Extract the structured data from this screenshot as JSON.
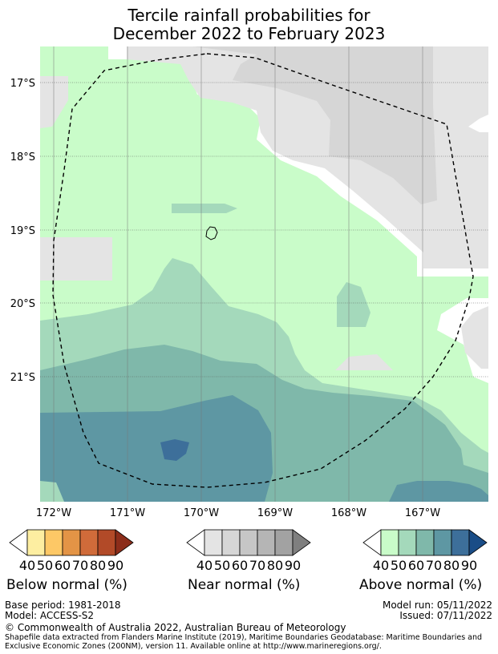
{
  "title": {
    "line1": "Tercile rainfall probabilities for",
    "line2": "December 2022 to February 2023"
  },
  "map": {
    "lat_labels": [
      "17°S",
      "18°S",
      "19°S",
      "20°S",
      "21°S"
    ],
    "lon_labels": [
      "172°W",
      "171°W",
      "170°W",
      "169°W",
      "168°W",
      "167°W"
    ]
  },
  "legend": {
    "below": {
      "label": "Below normal (%)",
      "ticks": [
        "40",
        "50",
        "60",
        "70",
        "80",
        "90"
      ],
      "colors": [
        "#ffffff",
        "#fdeea1",
        "#fdc866",
        "#e39446",
        "#d06b3a",
        "#b24a28",
        "#8c2d1a"
      ]
    },
    "near": {
      "label": "Near normal (%)",
      "ticks": [
        "40",
        "50",
        "60",
        "70",
        "80",
        "90"
      ],
      "colors": [
        "#ffffff",
        "#e4e4e4",
        "#d6d6d6",
        "#c6c6c6",
        "#b5b5b5",
        "#a2a2a2",
        "#7f7f7f"
      ]
    },
    "above": {
      "label": "Above normal (%)",
      "ticks": [
        "40",
        "50",
        "60",
        "70",
        "80",
        "90"
      ],
      "colors": [
        "#ffffff",
        "#c9fcc9",
        "#a4d9bb",
        "#7fb8aa",
        "#5e97a3",
        "#3d6f9a",
        "#1a4d87"
      ]
    }
  },
  "footer": {
    "base_period": "Base period: 1981-2018",
    "model": "Model: ACCESS-S2",
    "model_run": "Model run: 05/11/2022",
    "issued": "Issued: 07/11/2022",
    "copyright": "© Commonwealth of Australia 2022, Australian Bureau of Meteorology",
    "shapefile_line1": "Shapefile data extracted from Flanders Marine Institute (2019), Maritime Boundaries Geodatabase: Maritime Boundaries and",
    "shapefile_line2": "Exclusive Economic Zones (200NM), version 11. Available online at http://www.marineregions.org/."
  }
}
